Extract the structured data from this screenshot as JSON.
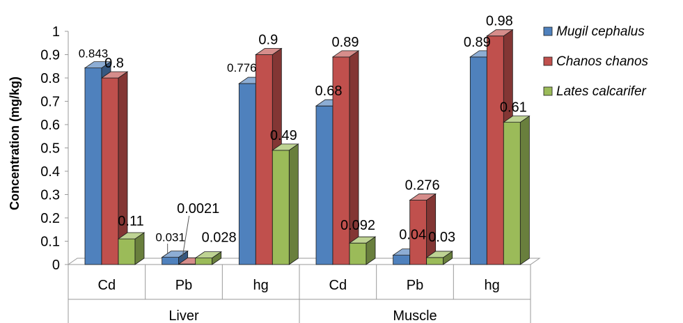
{
  "chart_data": {
    "type": "bar",
    "ylabel": "Concentration (mg/kg)",
    "ylim": [
      0,
      1
    ],
    "yticks": [
      "0",
      "0.1",
      "0.2",
      "0.3",
      "0.4",
      "0.5",
      "0.6",
      "0.7",
      "0.8",
      "0.9",
      "1"
    ],
    "groups": [
      "Liver",
      "Muscle"
    ],
    "categories": [
      "Cd",
      "Pb",
      "hg",
      "Cd",
      "Pb",
      "hg"
    ],
    "series": [
      {
        "name": "Mugil cephalus",
        "color": "#4F81BD",
        "values": [
          0.843,
          0.031,
          0.776,
          0.68,
          0.04,
          0.89
        ],
        "labels": [
          "0.843",
          "0.031",
          "0.776",
          "0.68",
          "0.04",
          "0.89"
        ]
      },
      {
        "name": "Chanos chanos",
        "color": "#C0504D",
        "values": [
          0.8,
          0.0021,
          0.9,
          0.89,
          0.276,
          0.98
        ],
        "labels": [
          "0.8",
          "0.0021",
          "0.9",
          "0.89",
          "0.276",
          "0.98"
        ]
      },
      {
        "name": "Lates calcarifer",
        "color": "#9BBB59",
        "values": [
          0.11,
          0.028,
          0.49,
          0.092,
          0.03,
          0.61
        ],
        "labels": [
          "0.11",
          "0.028",
          "0.49",
          "0.092",
          "0.03",
          "0.61"
        ]
      }
    ],
    "legend_position": "right",
    "grid": false,
    "three_d": true
  }
}
